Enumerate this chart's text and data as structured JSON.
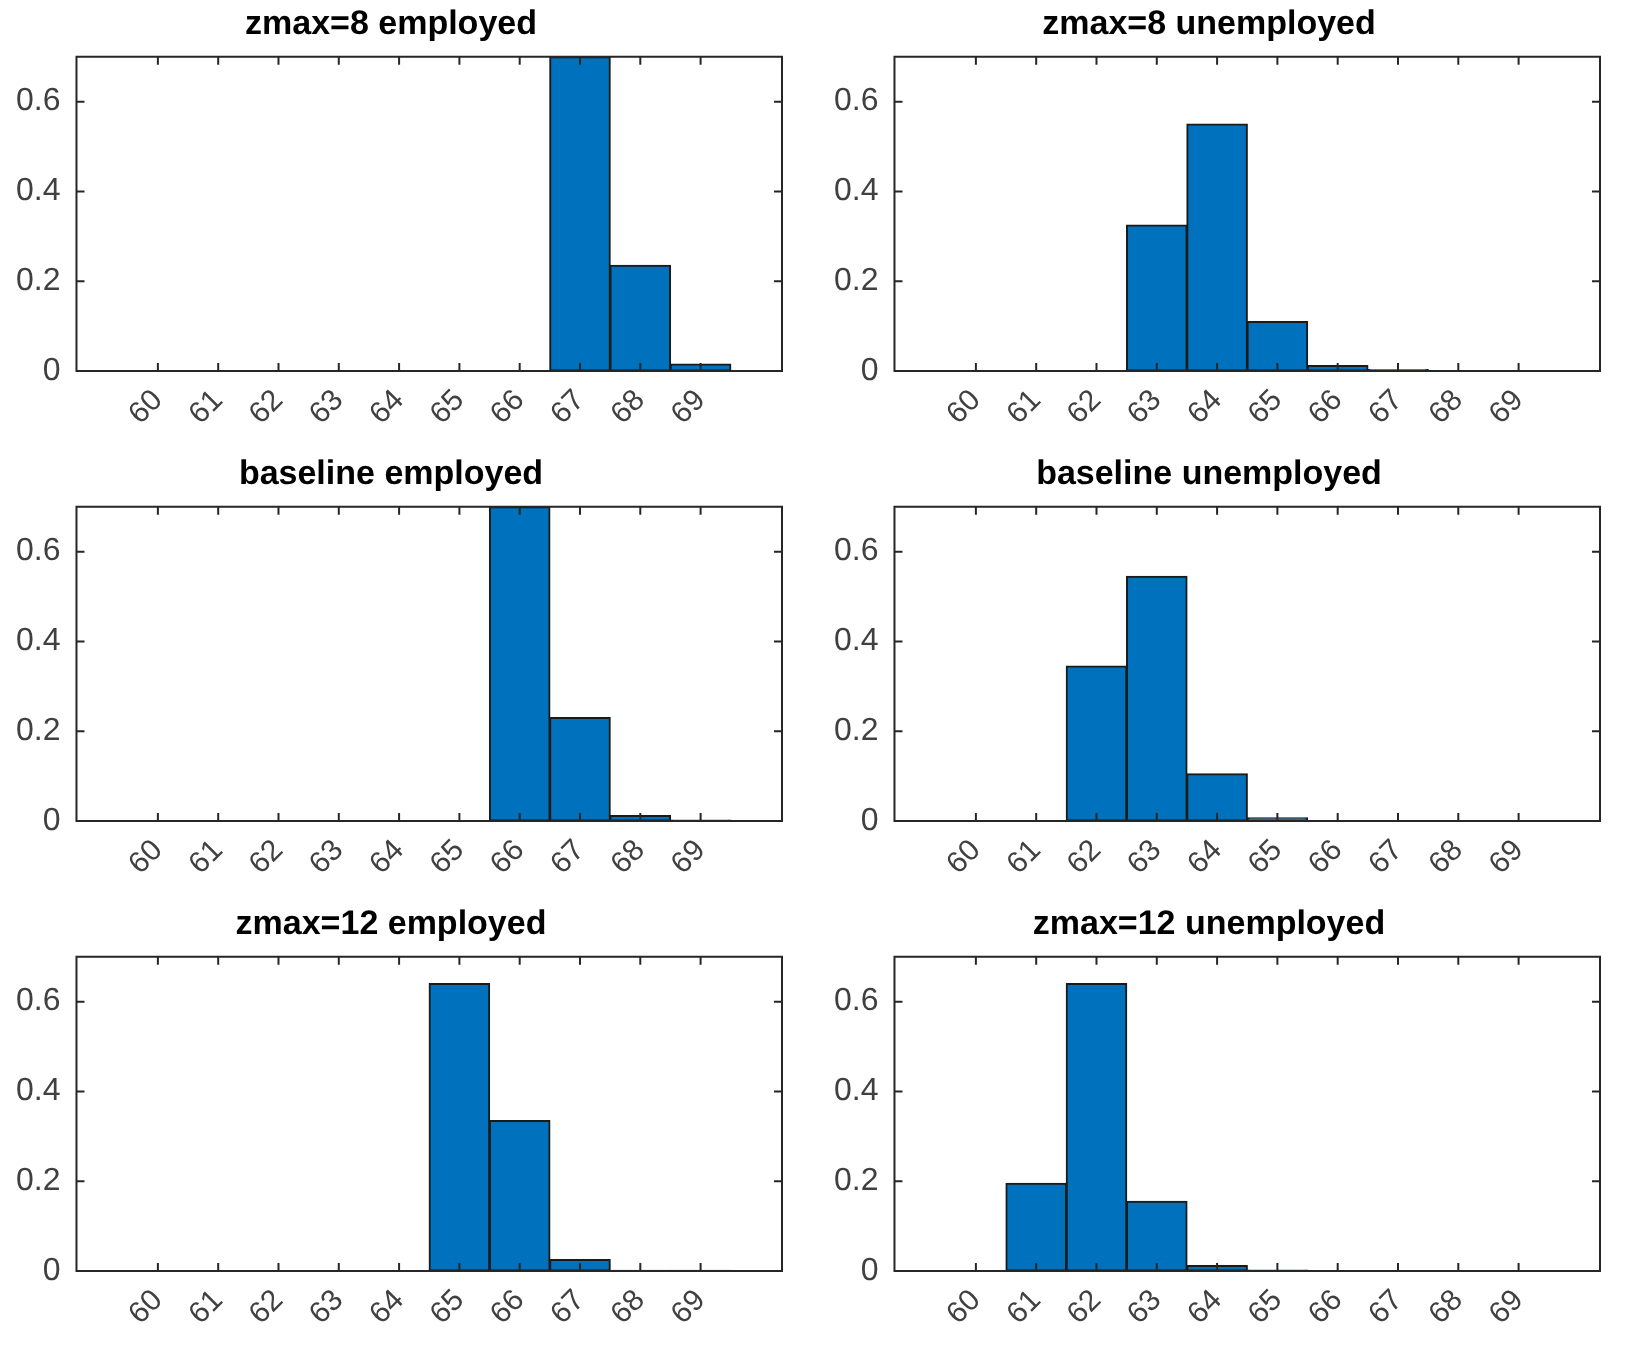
{
  "chart_data": [
    {
      "type": "bar",
      "title": "zmax=8 employed",
      "categories": [
        "60",
        "61",
        "62",
        "63",
        "64",
        "65",
        "66",
        "67",
        "68",
        "69"
      ],
      "values": [
        0,
        0,
        0,
        0,
        0,
        0,
        0,
        0.7,
        0.235,
        0.015
      ],
      "color": "#0072bd",
      "ylim": [
        0,
        0.7
      ],
      "yticks": [
        0,
        0.2,
        0.4,
        0.6
      ],
      "grid": false
    },
    {
      "type": "bar",
      "title": "zmax=8 unemployed",
      "categories": [
        "60",
        "61",
        "62",
        "63",
        "64",
        "65",
        "66",
        "67",
        "68",
        "69"
      ],
      "values": [
        0,
        0,
        0,
        0.325,
        0.55,
        0.11,
        0.012,
        0.003,
        0,
        0
      ],
      "color": "#0072bd",
      "ylim": [
        0,
        0.7
      ],
      "yticks": [
        0,
        0.2,
        0.4,
        0.6
      ],
      "grid": false
    },
    {
      "type": "bar",
      "title": "baseline employed",
      "categories": [
        "60",
        "61",
        "62",
        "63",
        "64",
        "65",
        "66",
        "67",
        "68",
        "69"
      ],
      "values": [
        0,
        0,
        0,
        0,
        0,
        0,
        0.7,
        0.23,
        0.012,
        0.002
      ],
      "color": "#0072bd",
      "ylim": [
        0,
        0.7
      ],
      "yticks": [
        0,
        0.2,
        0.4,
        0.6
      ],
      "grid": false
    },
    {
      "type": "bar",
      "title": "baseline unemployed",
      "categories": [
        "60",
        "61",
        "62",
        "63",
        "64",
        "65",
        "66",
        "67",
        "68",
        "69"
      ],
      "values": [
        0,
        0,
        0.345,
        0.545,
        0.105,
        0.007,
        0,
        0,
        0,
        0
      ],
      "color": "#0072bd",
      "ylim": [
        0,
        0.7
      ],
      "yticks": [
        0,
        0.2,
        0.4,
        0.6
      ],
      "grid": false
    },
    {
      "type": "bar",
      "title": "zmax=12 employed",
      "categories": [
        "60",
        "61",
        "62",
        "63",
        "64",
        "65",
        "66",
        "67",
        "68",
        "69"
      ],
      "values": [
        0,
        0,
        0,
        0,
        0,
        0.64,
        0.335,
        0.025,
        0.001,
        0.001
      ],
      "color": "#0072bd",
      "ylim": [
        0,
        0.7
      ],
      "yticks": [
        0,
        0.2,
        0.4,
        0.6
      ],
      "grid": false
    },
    {
      "type": "bar",
      "title": "zmax=12 unemployed",
      "categories": [
        "60",
        "61",
        "62",
        "63",
        "64",
        "65",
        "66",
        "67",
        "68",
        "69"
      ],
      "values": [
        0,
        0.195,
        0.64,
        0.155,
        0.012,
        0.002,
        0,
        0,
        0,
        0
      ],
      "color": "#0072bd",
      "ylim": [
        0,
        0.7
      ],
      "yticks": [
        0,
        0.2,
        0.4,
        0.6
      ],
      "grid": false
    }
  ]
}
